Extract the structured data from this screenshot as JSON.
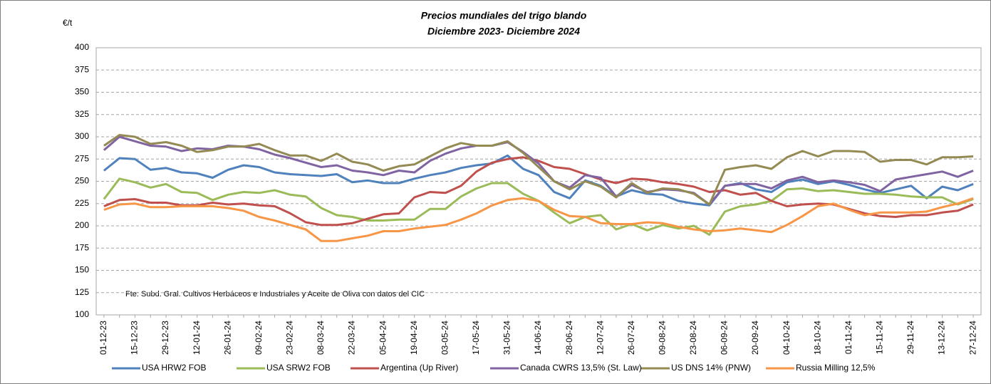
{
  "chart_data": {
    "type": "line",
    "title": "Precios mundiales del trigo blando",
    "subtitle": "Diciembre 2023- Diciembre 2024",
    "y_axis_label": "€/t",
    "annotation": "Fte: Subd. Gral. Cultivos Herbáceos e Industriales y Aceite de Oliva con datos del  CIC",
    "categories": [
      "01-12-23",
      null,
      "15-12-23",
      null,
      "29-12-23",
      null,
      "12-01-24",
      null,
      "26-01-24",
      null,
      "09-02-24",
      null,
      "23-02-24",
      null,
      "08-03-24",
      null,
      "22-03-24",
      null,
      "05-04-24",
      null,
      "19-04-24",
      null,
      "03-05-24",
      null,
      "17-05-24",
      null,
      "31-05-24",
      null,
      "14-06-24",
      null,
      "28-06-24",
      null,
      "12-07-24",
      null,
      "26-07-24",
      null,
      "09-08-24",
      null,
      "23-08-24",
      null,
      "06-09-24",
      null,
      "20-09-24",
      null,
      "04-10-24",
      null,
      "18-10-24",
      null,
      "01-11-24",
      null,
      "15-11-24",
      null,
      "29-11-24",
      null,
      "13-12-24",
      null,
      "27-12-24"
    ],
    "series": [
      {
        "name": "USA HRW2 FOB",
        "color": "#4f81bd",
        "values": [
          262,
          276,
          275,
          263,
          265,
          260,
          259,
          254,
          263,
          268,
          266,
          260,
          258,
          257,
          256,
          258,
          249,
          251,
          248,
          248,
          253,
          257,
          260,
          265,
          268,
          270,
          279,
          264,
          257,
          238,
          231,
          251,
          245,
          233,
          240,
          236,
          235,
          228,
          225,
          223,
          245,
          248,
          241,
          238,
          249,
          252,
          247,
          250,
          246,
          241,
          237,
          241,
          245,
          231,
          244,
          240,
          247
        ]
      },
      {
        "name": "USA SRW2 FOB",
        "color": "#9bbb59",
        "values": [
          230,
          253,
          249,
          243,
          247,
          238,
          237,
          229,
          235,
          238,
          237,
          240,
          235,
          233,
          220,
          212,
          210,
          206,
          206,
          207,
          207,
          219,
          219,
          233,
          242,
          248,
          248,
          236,
          228,
          215,
          203,
          210,
          212,
          196,
          202,
          195,
          201,
          197,
          200,
          190,
          216,
          222,
          224,
          228,
          241,
          242,
          239,
          240,
          238,
          236,
          236,
          235,
          233,
          232,
          232,
          224,
          230
        ]
      },
      {
        "name": "Argentina (Up River)",
        "color": "#c0504d",
        "values": [
          222,
          229,
          230,
          226,
          226,
          223,
          223,
          226,
          224,
          225,
          223,
          222,
          214,
          204,
          201,
          201,
          203,
          208,
          213,
          214,
          232,
          238,
          237,
          245,
          261,
          271,
          275,
          277,
          273,
          266,
          264,
          258,
          252,
          248,
          253,
          252,
          249,
          247,
          244,
          238,
          240,
          235,
          237,
          228,
          222,
          224,
          225,
          224,
          219,
          214,
          211,
          210,
          212,
          212,
          215,
          217,
          224
        ]
      },
      {
        "name": "Canada CWRS 13,5% (St. Law)",
        "color": "#8064a2",
        "values": [
          285,
          300,
          295,
          290,
          289,
          284,
          287,
          286,
          290,
          289,
          286,
          280,
          276,
          271,
          266,
          268,
          262,
          260,
          257,
          262,
          260,
          273,
          281,
          287,
          290,
          290,
          294,
          283,
          270,
          250,
          243,
          257,
          254,
          233,
          246,
          238,
          241,
          240,
          237,
          224,
          245,
          247,
          247,
          242,
          251,
          255,
          249,
          251,
          249,
          246,
          239,
          252,
          255,
          258,
          261,
          255,
          262
        ]
      },
      {
        "name": "US DNS 14% (PNW)",
        "color": "#948a54",
        "values": [
          290,
          302,
          300,
          292,
          294,
          290,
          283,
          285,
          289,
          289,
          292,
          285,
          279,
          279,
          273,
          281,
          272,
          269,
          262,
          267,
          269,
          278,
          287,
          293,
          290,
          290,
          295,
          282,
          266,
          250,
          241,
          250,
          244,
          232,
          248,
          237,
          242,
          241,
          236,
          224,
          263,
          266,
          268,
          264,
          277,
          284,
          278,
          284,
          284,
          283,
          272,
          274,
          274,
          269,
          277,
          277,
          278
        ]
      },
      {
        "name": "Russia Milling 12,5%",
        "color": "#f79646",
        "values": [
          218,
          224,
          225,
          221,
          221,
          222,
          222,
          222,
          220,
          217,
          210,
          206,
          201,
          196,
          183,
          183,
          186,
          189,
          194,
          194,
          197,
          199,
          201,
          207,
          214,
          223,
          229,
          231,
          228,
          218,
          211,
          210,
          203,
          202,
          202,
          204,
          203,
          199,
          196,
          194,
          195,
          197,
          195,
          193,
          201,
          211,
          222,
          225,
          218,
          212,
          215,
          215,
          215,
          216,
          221,
          225,
          231
        ]
      }
    ],
    "ylim": [
      100,
      400
    ],
    "yticks": [
      100,
      125,
      150,
      175,
      200,
      225,
      250,
      275,
      300,
      325,
      350,
      375,
      400
    ],
    "grid": true
  }
}
